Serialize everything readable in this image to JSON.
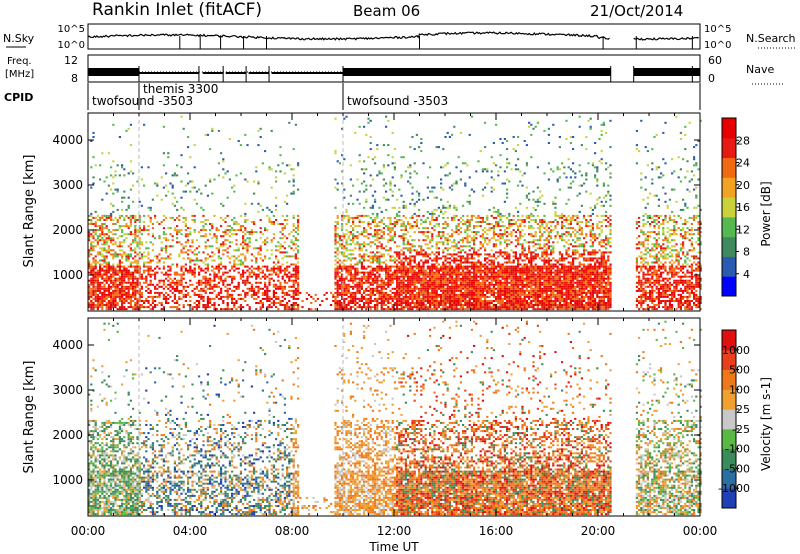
{
  "header": {
    "title": "Rankin Inlet (fitACF)",
    "beam": "Beam 06",
    "date": "21/Oct/2014"
  },
  "status_panel": {
    "nsky_label": "N.Sky",
    "nsearch_label": "N.Search",
    "freq_label_line1": "Freq.",
    "freq_label_line2": "[MHz]",
    "nave_label": "Nave",
    "cpid_label": "CPID",
    "noise_ticks_left": [
      "10^5",
      "10^0"
    ],
    "noise_ticks_right": [
      "10^5",
      "10^0"
    ],
    "freq_ticks_left": [
      "12",
      "8"
    ],
    "nave_ticks_right": [
      "60",
      "0"
    ],
    "cpid_segments": [
      {
        "name": "twofsound -3503",
        "start_hour": 0,
        "end_hour": 2
      },
      {
        "name": "themis 3300",
        "start_hour": 2,
        "end_hour": 10
      },
      {
        "name": "twofsound -3503",
        "start_hour": 10,
        "end_hour": 24
      }
    ],
    "data_gap_hours": [
      20.5,
      21.4
    ]
  },
  "x_axis": {
    "label": "Time UT",
    "ticks": [
      "00:00",
      "04:00",
      "08:00",
      "12:00",
      "16:00",
      "20:00",
      "00:00"
    ],
    "range_hours": [
      0,
      24
    ]
  },
  "chart_data": [
    {
      "type": "heatmap",
      "name": "power",
      "ylabel": "Slant Range [km]",
      "yticks": [
        "4000",
        "3000",
        "2000",
        "1000"
      ],
      "ylim": [
        200,
        4600
      ],
      "colorbar_label": "Power [dB]",
      "colorbar_ticks": [
        "28",
        "24",
        "20",
        "16",
        "12",
        "8",
        "4"
      ],
      "colorbar_colors": [
        "#0000ff",
        "#2a5bb0",
        "#3f8a5e",
        "#55b850",
        "#c9d23a",
        "#f2a324",
        "#f06a12",
        "#e61a12",
        "#e60000"
      ],
      "x_range_hours": [
        0,
        24
      ]
    },
    {
      "type": "heatmap",
      "name": "velocity",
      "ylabel": "Slant Range [km]",
      "yticks": [
        "4000",
        "3000",
        "2000",
        "1000"
      ],
      "ylim": [
        200,
        4600
      ],
      "colorbar_label": "Velocity [m s-1]",
      "colorbar_ticks": [
        "1000",
        "500",
        "100",
        "25",
        "-25",
        "-100",
        "-500",
        "-1000"
      ],
      "colorbar_colors": [
        "#1f3fb4",
        "#2d6ea0",
        "#3a8c5a",
        "#5ab845",
        "#c8c8c8",
        "#f0a030",
        "#f07818",
        "#e8401a",
        "#e01010"
      ],
      "x_range_hours": [
        0,
        24
      ]
    }
  ]
}
